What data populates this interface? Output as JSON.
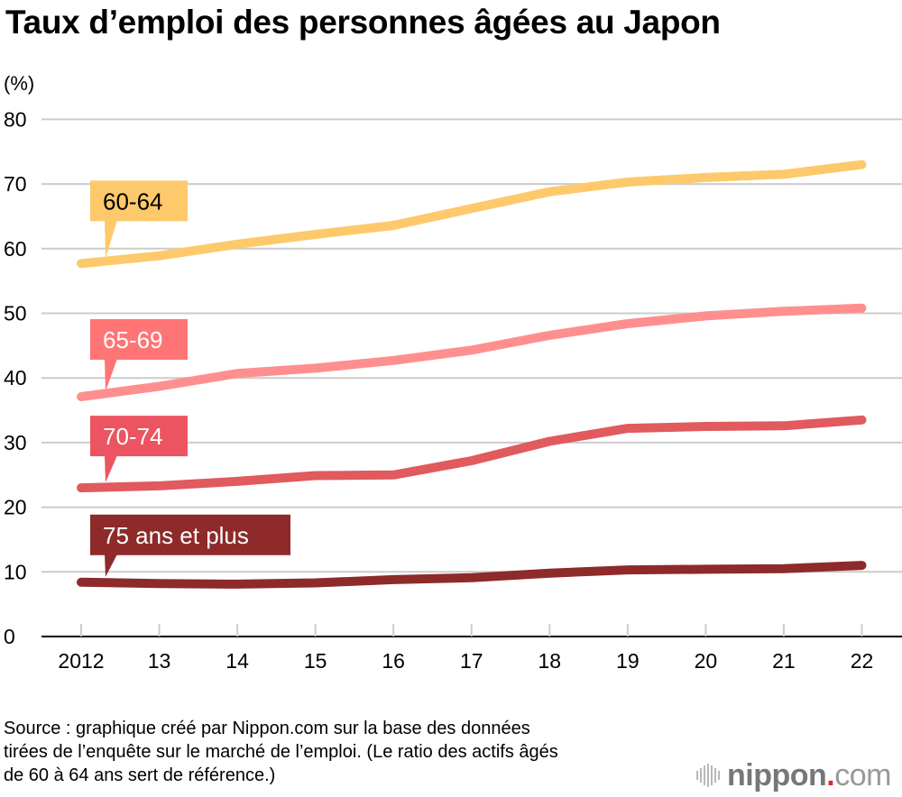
{
  "title": "Taux d’emploi des personnes âgées au Japon",
  "unit_label": "(%)",
  "source": "Source : graphique créé par Nippon.com sur la base des données tirées de l’enquête sur le marché de l’emploi. (Le ratio des actifs âgés de 60 à 64 ans sert de référence.)",
  "source_lines": [
    "Source : graphique créé par Nippon.com sur la base des données",
    "tirées de l’enquête sur le marché de l’emploi. (Le ratio des actifs âgés",
    "de 60 à 64 ans sert de référence.)"
  ],
  "logo": {
    "name": "nippon",
    "dot": ".",
    "suffix": "com",
    "icon": "soundwave-bars-icon"
  },
  "colors": {
    "grid": "#cccccc",
    "axis": "#000000",
    "logo_dot": "#e3262a"
  },
  "chart_data": {
    "type": "line",
    "title": "Taux d’emploi des personnes âgées au Japon",
    "xlabel": "",
    "ylabel": "(%)",
    "categories": [
      "2012",
      "13",
      "14",
      "15",
      "16",
      "17",
      "18",
      "19",
      "20",
      "21",
      "22"
    ],
    "ylim": [
      0,
      80
    ],
    "yticks": [
      0,
      10,
      20,
      30,
      40,
      50,
      60,
      70,
      80
    ],
    "grid": true,
    "legend": "inline-labels",
    "series": [
      {
        "name": "60-64",
        "label_text_color": "#000000",
        "color": "#fdc96b",
        "label_color": "#fdc96b",
        "values": [
          57.7,
          58.9,
          60.7,
          62.2,
          63.6,
          66.2,
          68.8,
          70.3,
          71.0,
          71.5,
          73.0
        ]
      },
      {
        "name": "65-69",
        "label_text_color": "#ffffff",
        "color": "#ff8f8f",
        "label_color": "#ff7575",
        "values": [
          37.1,
          38.7,
          40.7,
          41.5,
          42.7,
          44.3,
          46.6,
          48.4,
          49.6,
          50.3,
          50.8
        ]
      },
      {
        "name": "70-74",
        "label_text_color": "#ffffff",
        "color": "#e05a5e",
        "label_color": "#eb5460",
        "values": [
          23.0,
          23.3,
          24.0,
          24.9,
          25.0,
          27.2,
          30.2,
          32.2,
          32.5,
          32.6,
          33.5
        ]
      },
      {
        "name": "75 ans et plus",
        "label_text_color": "#ffffff",
        "color": "#8e2a2a",
        "label_color": "#8e2a2a",
        "values": [
          8.4,
          8.2,
          8.1,
          8.3,
          8.8,
          9.1,
          9.8,
          10.3,
          10.4,
          10.5,
          11.0
        ]
      }
    ]
  }
}
